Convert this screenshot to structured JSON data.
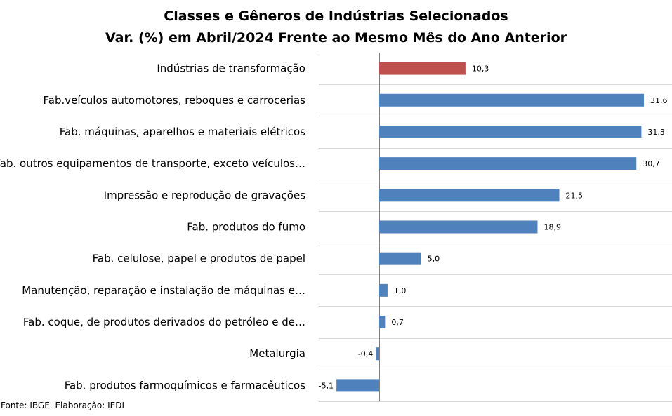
{
  "chart_data": {
    "type": "bar",
    "orientation": "horizontal",
    "title": "Classes e Gêneros de Indústrias Selecionados",
    "subtitle": "Var. (%) em Abril/2024 Frente ao Mesmo Mês do Ano Anterior",
    "categories": [
      "Indústrias de transformação",
      "Fab.veículos automotores, reboques e carrocerias",
      "Fab. máquinas, aparelhos e materiais elétricos",
      "Fab. outros equipamentos de transporte, exceto veículos…",
      "Impressão e reprodução de gravações",
      "Fab. produtos do fumo",
      "Fab. celulose, papel e produtos de papel",
      "Manutenção, reparação e instalação de máquinas e…",
      "Fab. coque, de produtos derivados do petróleo e de…",
      "Metalurgia",
      "Fab. produtos farmoquímicos e farmacêuticos"
    ],
    "values": [
      10.3,
      31.6,
      31.3,
      30.7,
      21.5,
      18.9,
      5.0,
      1.0,
      0.7,
      -0.4,
      -5.1
    ],
    "value_labels": [
      "10,3",
      "31,6",
      "31,3",
      "30,7",
      "21,5",
      "18,9",
      "5,0",
      "1,0",
      "0,7",
      "-0,4",
      "-5,1"
    ],
    "xlim": [
      -5.1,
      31.6
    ],
    "grid": true,
    "colors": {
      "highlight": "#c0504d",
      "default": "#4f81bd"
    },
    "highlight_index": 0
  },
  "source": "Fonte: IBGE. Elaboração: IEDI"
}
